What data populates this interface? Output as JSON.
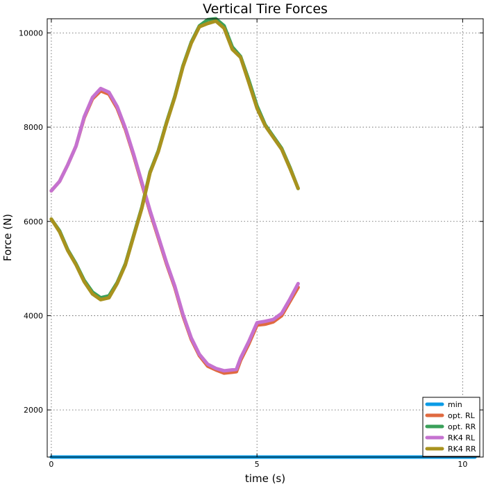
{
  "chart_data": {
    "type": "line",
    "title": "Vertical Tire Forces",
    "xlabel": "time (s)",
    "ylabel": "Force (N)",
    "xlim": [
      -0.1,
      10.5
    ],
    "ylim": [
      1000,
      10300
    ],
    "xticks": [
      0,
      5,
      10
    ],
    "yticks": [
      2000,
      4000,
      6000,
      8000,
      10000
    ],
    "grid": true,
    "legend_position": "bottom-right",
    "series": [
      {
        "name": "min",
        "color": "#0a9be6",
        "x": [
          0,
          10.3
        ],
        "y": [
          1000,
          1000
        ]
      },
      {
        "name": "opt. RL",
        "color": "#e06a40",
        "x": [
          0,
          0.2,
          0.4,
          0.6,
          0.8,
          1.0,
          1.2,
          1.4,
          1.6,
          1.8,
          2.0,
          2.2,
          2.4,
          2.6,
          2.8,
          3.0,
          3.2,
          3.4,
          3.6,
          3.8,
          4.0,
          4.2,
          4.4,
          4.5,
          4.6,
          4.8,
          5.0,
          5.2,
          5.4,
          5.6,
          5.8,
          6.0
        ],
        "y": [
          6650,
          6850,
          7200,
          7600,
          8200,
          8600,
          8770,
          8700,
          8400,
          7950,
          7400,
          6800,
          6200,
          5650,
          5100,
          4600,
          4000,
          3500,
          3150,
          2930,
          2850,
          2780,
          2800,
          2810,
          3050,
          3400,
          3800,
          3820,
          3870,
          4000,
          4300,
          4600
        ]
      },
      {
        "name": "opt. RR",
        "color": "#3aa05a",
        "x": [
          0,
          0.2,
          0.4,
          0.6,
          0.8,
          1.0,
          1.2,
          1.4,
          1.6,
          1.8,
          2.0,
          2.2,
          2.4,
          2.6,
          2.8,
          3.0,
          3.2,
          3.4,
          3.6,
          3.8,
          4.0,
          4.2,
          4.4,
          4.6,
          4.8,
          5.0,
          5.2,
          5.4,
          5.6,
          5.8,
          6.0
        ],
        "y": [
          6050,
          5800,
          5400,
          5100,
          4750,
          4500,
          4380,
          4420,
          4700,
          5100,
          5700,
          6300,
          7050,
          7500,
          8100,
          8650,
          9300,
          9800,
          10150,
          10280,
          10300,
          10150,
          9700,
          9500,
          9000,
          8450,
          8050,
          7800,
          7550,
          7150,
          6700
        ]
      },
      {
        "name": "RK4 RL",
        "color": "#c572d0",
        "x": [
          0,
          0.2,
          0.4,
          0.6,
          0.8,
          1.0,
          1.2,
          1.4,
          1.6,
          1.8,
          2.0,
          2.2,
          2.4,
          2.6,
          2.8,
          3.0,
          3.2,
          3.4,
          3.6,
          3.8,
          4.0,
          4.2,
          4.4,
          4.5,
          4.6,
          4.8,
          5.0,
          5.2,
          5.4,
          5.6,
          5.8,
          6.0
        ],
        "y": [
          6650,
          6850,
          7200,
          7600,
          8220,
          8630,
          8820,
          8740,
          8440,
          7980,
          7430,
          6830,
          6230,
          5680,
          5130,
          4630,
          4030,
          3530,
          3180,
          2970,
          2880,
          2830,
          2850,
          2860,
          3100,
          3450,
          3850,
          3880,
          3920,
          4050,
          4350,
          4680
        ]
      },
      {
        "name": "RK4 RR",
        "color": "#a8921e",
        "x": [
          0,
          0.2,
          0.4,
          0.6,
          0.8,
          1.0,
          1.2,
          1.4,
          1.6,
          1.8,
          2.0,
          2.2,
          2.4,
          2.6,
          2.8,
          3.0,
          3.2,
          3.4,
          3.6,
          3.8,
          4.0,
          4.2,
          4.4,
          4.6,
          4.8,
          5.0,
          5.2,
          5.4,
          5.6,
          5.8,
          6.0
        ],
        "y": [
          6050,
          5780,
          5380,
          5080,
          4720,
          4460,
          4340,
          4380,
          4680,
          5080,
          5680,
          6280,
          7030,
          7480,
          8080,
          8630,
          9280,
          9780,
          10130,
          10200,
          10250,
          10100,
          9650,
          9480,
          8950,
          8400,
          8030,
          7780,
          7530,
          7130,
          6700
        ]
      }
    ]
  }
}
